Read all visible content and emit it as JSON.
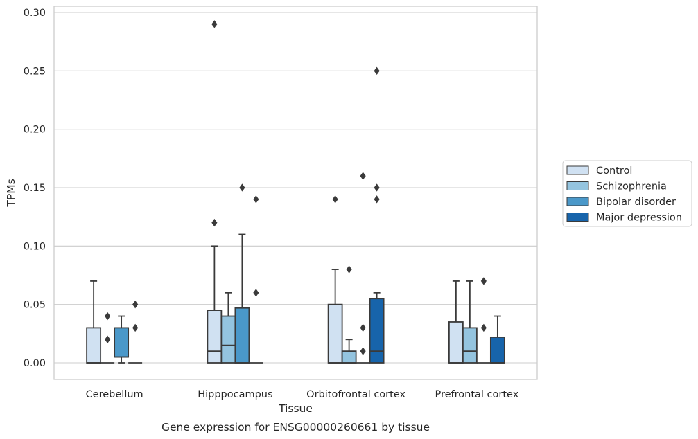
{
  "chart_data": {
    "type": "box",
    "title": "Gene expression for ENSG00000260661 by tissue",
    "xlabel": "Tissue",
    "ylabel": "TPMs",
    "ylim": [
      -0.014,
      0.305
    ],
    "yticks": [
      "0.00",
      "0.05",
      "0.10",
      "0.15",
      "0.20",
      "0.25",
      "0.30"
    ],
    "grid": "horizontal",
    "legend_position": "right",
    "categories": [
      "Cerebellum",
      "Hipppocampus",
      "Orbitofrontal cortex",
      "Prefrontal cortex"
    ],
    "series": [
      {
        "name": "Control",
        "color": "#d0e1f2",
        "boxes": [
          {
            "q1": 0.0,
            "median": 0.0,
            "q3": 0.03,
            "wlo": 0.0,
            "whi": 0.07,
            "fliers": []
          },
          {
            "q1": 0.0,
            "median": 0.01,
            "q3": 0.045,
            "wlo": 0.0,
            "whi": 0.1,
            "fliers": [
              0.12,
              0.29
            ]
          },
          {
            "q1": 0.0,
            "median": 0.0,
            "q3": 0.05,
            "wlo": 0.0,
            "whi": 0.08,
            "fliers": [
              0.14
            ]
          },
          {
            "q1": 0.0,
            "median": 0.0,
            "q3": 0.035,
            "wlo": 0.0,
            "whi": 0.07,
            "fliers": []
          }
        ]
      },
      {
        "name": "Schizophrenia",
        "color": "#94c4df",
        "boxes": [
          {
            "q1": 0.0,
            "median": 0.0,
            "q3": 0.0,
            "wlo": 0.0,
            "whi": 0.0,
            "fliers": [
              0.02,
              0.04
            ]
          },
          {
            "q1": 0.0,
            "median": 0.015,
            "q3": 0.04,
            "wlo": 0.0,
            "whi": 0.06,
            "fliers": []
          },
          {
            "q1": 0.0,
            "median": 0.0,
            "q3": 0.01,
            "wlo": 0.0,
            "whi": 0.02,
            "fliers": [
              0.08
            ]
          },
          {
            "q1": 0.0,
            "median": 0.01,
            "q3": 0.03,
            "wlo": 0.0,
            "whi": 0.07,
            "fliers": []
          }
        ]
      },
      {
        "name": "Bipolar disorder",
        "color": "#4a98c9",
        "boxes": [
          {
            "q1": 0.005,
            "median": 0.005,
            "q3": 0.03,
            "wlo": 0.0,
            "whi": 0.04,
            "fliers": []
          },
          {
            "q1": 0.0,
            "median": 0.0,
            "q3": 0.047,
            "wlo": 0.0,
            "whi": 0.11,
            "fliers": [
              0.15
            ]
          },
          {
            "q1": 0.0,
            "median": 0.0,
            "q3": 0.0,
            "wlo": 0.0,
            "whi": 0.0,
            "fliers": [
              0.01,
              0.03,
              0.16
            ]
          },
          {
            "q1": 0.0,
            "median": 0.0,
            "q3": 0.0,
            "wlo": 0.0,
            "whi": 0.0,
            "fliers": [
              0.03,
              0.07
            ]
          }
        ]
      },
      {
        "name": "Major depression",
        "color": "#1764ab",
        "boxes": [
          {
            "q1": 0.0,
            "median": 0.0,
            "q3": 0.0,
            "wlo": 0.0,
            "whi": 0.0,
            "fliers": [
              0.03,
              0.05
            ]
          },
          {
            "q1": 0.0,
            "median": 0.0,
            "q3": 0.0,
            "wlo": 0.0,
            "whi": 0.0,
            "fliers": [
              0.06,
              0.14
            ]
          },
          {
            "q1": 0.0,
            "median": 0.01,
            "q3": 0.055,
            "wlo": 0.0,
            "whi": 0.06,
            "fliers": [
              0.14,
              0.15,
              0.25
            ]
          },
          {
            "q1": 0.0,
            "median": 0.0,
            "q3": 0.022,
            "wlo": 0.0,
            "whi": 0.04,
            "fliers": []
          }
        ]
      }
    ]
  }
}
